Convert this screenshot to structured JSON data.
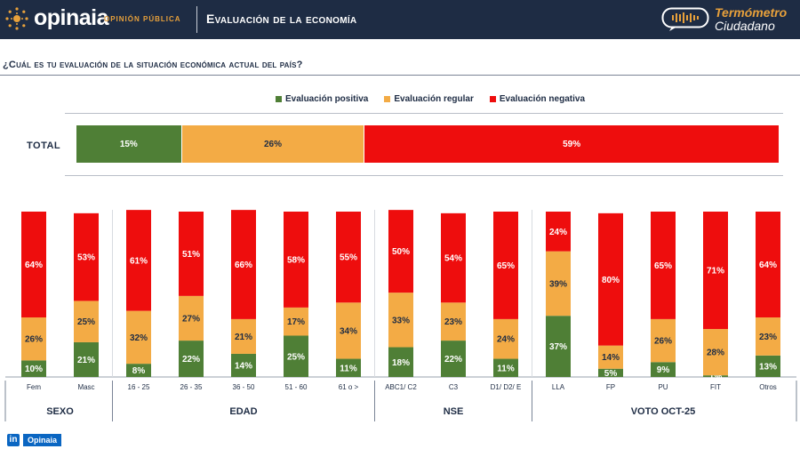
{
  "header": {
    "brand": "opinaia",
    "brand_sub": "OPINIÓN PÚBLICA",
    "title": "Evaluación de la economía",
    "badge_line1": "Termómetro",
    "badge_line2": "Ciudadano"
  },
  "question": "¿Cuál es tu evaluación de la situación económica actual del país?",
  "legend": {
    "positive": "Evaluación positiva",
    "regular": "Evaluación regular",
    "negative": "Evaluación negativa"
  },
  "colors": {
    "positive": "#4f7f36",
    "regular": "#f3ab45",
    "negative": "#ee0d0d",
    "dark": "#1e2c44"
  },
  "total": {
    "label": "TOTAL",
    "positive": "15%",
    "regular": "26%",
    "negative": "59%"
  },
  "footer": {
    "linkedin_icon": "in",
    "name": "Opinaia"
  },
  "chart_data": {
    "type": "bar",
    "stacked": true,
    "total": {
      "label": "TOTAL",
      "positive": 15,
      "regular": 26,
      "negative": 59
    },
    "categories": [
      "Fem",
      "Masc",
      "16 - 25",
      "26 - 35",
      "36 - 50",
      "51 - 60",
      "61 o >",
      "ABC1/ C2",
      "C3",
      "D1/ D2/ E",
      "LLA",
      "FP",
      "PU",
      "FIT",
      "Otros"
    ],
    "series": [
      {
        "name": "Evaluación positiva",
        "values": [
          10,
          21,
          8,
          22,
          14,
          25,
          11,
          18,
          22,
          11,
          37,
          5,
          9,
          1,
          13
        ]
      },
      {
        "name": "Evaluación regular",
        "values": [
          26,
          25,
          32,
          27,
          21,
          17,
          34,
          33,
          23,
          24,
          39,
          14,
          26,
          28,
          23
        ]
      },
      {
        "name": "Evaluación negativa",
        "values": [
          64,
          53,
          61,
          51,
          66,
          58,
          55,
          50,
          54,
          65,
          24,
          80,
          65,
          71,
          64
        ]
      }
    ],
    "groups": [
      {
        "label": "SEXO",
        "categories": [
          "Fem",
          "Masc"
        ]
      },
      {
        "label": "EDAD",
        "categories": [
          "16 - 25",
          "26 - 35",
          "36 - 50",
          "51 - 60",
          "61 o >"
        ]
      },
      {
        "label": "NSE",
        "categories": [
          "ABC1/ C2",
          "C3",
          "D1/ D2/ E"
        ]
      },
      {
        "label": "VOTO OCT-25",
        "categories": [
          "LLA",
          "FP",
          "PU",
          "FIT",
          "Otros"
        ]
      }
    ],
    "ylim": [
      0,
      100
    ],
    "legend_position": "top-center"
  }
}
